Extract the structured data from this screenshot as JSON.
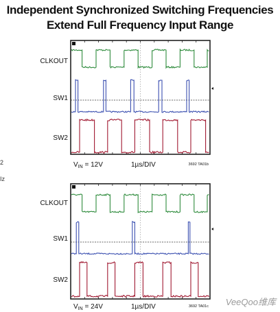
{
  "title": {
    "line1": "Independent Synchronized Switching Frequencies",
    "line2": "Extend Full Frequency Input Range"
  },
  "edge_text": {
    "a": "2",
    "b": "Iz"
  },
  "watermark": "VeeQoo维库",
  "colors": {
    "clkout": "#2e8b3c",
    "sw1": "#3a4fb0",
    "sw2": "#a01830",
    "grid": "#8a8a8a",
    "frame": "#222222"
  },
  "chart_data": [
    {
      "type": "line",
      "title": "",
      "channels": [
        "CLKOUT",
        "SW1",
        "SW2"
      ],
      "vin_label": "12V",
      "timebase": "1µs/DIV",
      "code": "3692 TA01b",
      "time_divisions": 10,
      "clkout": {
        "period_div": 2.0,
        "phase_div": -0.25
      },
      "sw1": {
        "period_div": 2.0,
        "pulse_width_div": 0.2,
        "phase_div": 0.25
      },
      "sw2": {
        "period_div": 2.0,
        "pulse_width_div": 1.05,
        "phase_div": 0.55
      }
    },
    {
      "type": "line",
      "title": "",
      "channels": [
        "CLKOUT",
        "SW1",
        "SW2"
      ],
      "vin_label": "24V",
      "timebase": "1µs/DIV",
      "code": "3692 TA01c",
      "time_divisions": 10,
      "clkout": {
        "period_div": 2.0,
        "phase_div": -0.25
      },
      "sw1": {
        "period_div": 4.0,
        "pulse_width_div": 0.15,
        "phase_div": 0.35
      },
      "sw2": {
        "period_div": 2.0,
        "pulse_width_div": 0.55,
        "phase_div": 0.55
      }
    }
  ]
}
